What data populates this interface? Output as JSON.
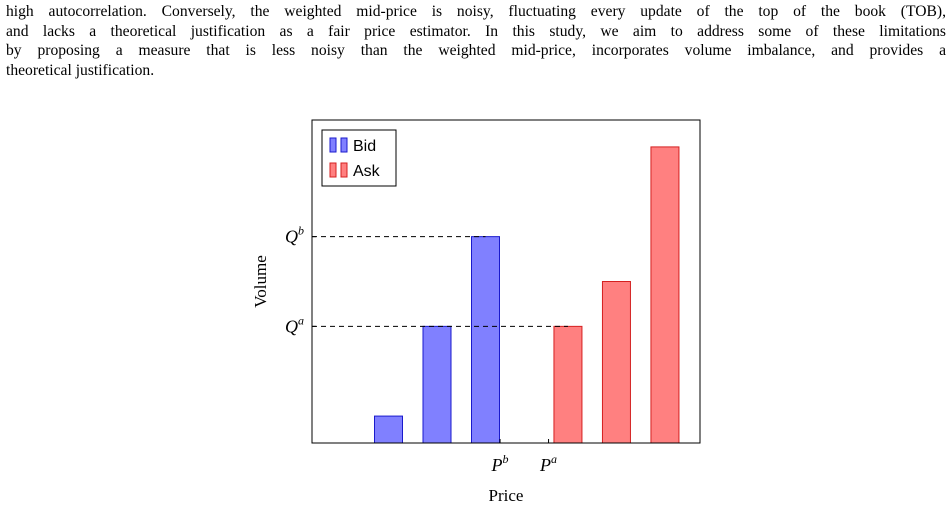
{
  "paragraph": {
    "lines": [
      "high autocorrelation. Conversely, the weighted mid-price is noisy, fluctuating every update of the top of the book (TOB),",
      "and lacks a theoretical justification as a fair price estimator. In this study, we aim to address some of these limitations",
      "by proposing a measure that is less noisy than the weighted mid-price, incorporates volume imbalance, and provides a",
      "theoretical justification."
    ]
  },
  "chart_data": {
    "type": "bar",
    "xlabel": "Price",
    "ylabel": "Volume",
    "ylim": [
      0,
      9
    ],
    "legend": {
      "placement": "top-left",
      "entries": [
        {
          "name": "Bid",
          "color": "#8080ff",
          "edge": "#1a1acc"
        },
        {
          "name": "Ask",
          "color": "#ff8080",
          "edge": "#d42020"
        }
      ]
    },
    "series": [
      {
        "name": "Bid",
        "x": [
          1,
          2,
          3
        ],
        "values": [
          0.75,
          3.25,
          5.75
        ]
      },
      {
        "name": "Ask",
        "x": [
          4.7,
          5.7,
          6.7
        ],
        "values": [
          3.25,
          4.5,
          8.25
        ]
      }
    ],
    "xlim": [
      0,
      8
    ],
    "x_ticks": [
      {
        "base": "P",
        "sup": "b",
        "x": 3.3
      },
      {
        "base": "P",
        "sup": "a",
        "x": 4.3
      }
    ],
    "y_ticks": [
      {
        "base": "Q",
        "sup": "b",
        "value": 5.75
      },
      {
        "base": "Q",
        "sup": "a",
        "value": 3.25
      }
    ],
    "reference_lines": [
      {
        "value": 5.75,
        "from_x": 0,
        "to_x": 3,
        "style": "dashed"
      },
      {
        "value": 3.25,
        "from_x": 0,
        "to_x": 4.7,
        "style": "dashed"
      }
    ]
  }
}
